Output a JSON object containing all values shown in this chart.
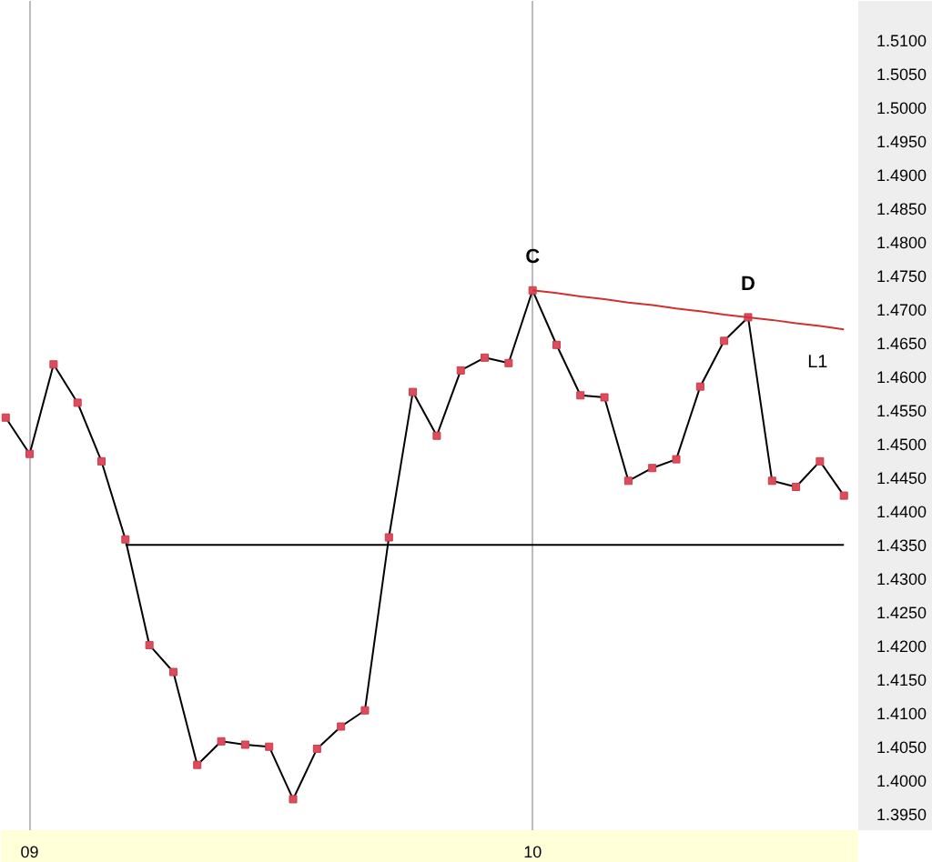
{
  "chart_data": {
    "type": "line",
    "categories": [
      null,
      "09",
      null,
      null,
      null,
      null,
      null,
      null,
      null,
      null,
      null,
      null,
      null,
      null,
      null,
      null,
      null,
      null,
      null,
      null,
      null,
      null,
      "10",
      null,
      null,
      null,
      null,
      null,
      null,
      null,
      null,
      null,
      null,
      null,
      null,
      null
    ],
    "series": [
      {
        "color": "#000000",
        "marker": "square",
        "values": [
          1.4539,
          1.4485,
          1.4618,
          1.4561,
          1.4474,
          1.4358,
          1.4201,
          1.4161,
          1.4023,
          1.4058,
          1.4053,
          1.405,
          1.3972,
          1.4047,
          1.408,
          1.4104,
          1.4361,
          1.4577,
          1.4512,
          1.4609,
          1.4628,
          1.462,
          1.4728,
          1.4647,
          1.4572,
          1.4569,
          1.4445,
          1.4464,
          1.4477,
          1.4585,
          1.4653,
          1.4688,
          1.4445,
          1.4436,
          1.4474,
          1.4423
        ]
      },
      {
        "name": "L1",
        "color": "#d03030",
        "marker": "none",
        "values": [
          null,
          null,
          null,
          null,
          null,
          null,
          null,
          null,
          null,
          null,
          null,
          null,
          null,
          null,
          null,
          null,
          null,
          null,
          null,
          null,
          null,
          null,
          1.4728,
          1.4724,
          1.4719,
          1.4715,
          1.471,
          1.4706,
          1.4701,
          1.4697,
          1.4692,
          1.4688,
          1.4684,
          1.4679,
          1.4675,
          1.467
        ]
      },
      {
        "color": "#000000",
        "marker": "none",
        "values": [
          null,
          null,
          null,
          null,
          null,
          1.435,
          1.435,
          1.435,
          1.435,
          1.435,
          1.435,
          1.435,
          1.435,
          1.435,
          1.435,
          1.435,
          1.435,
          1.435,
          1.435,
          1.435,
          1.435,
          1.435,
          1.435,
          1.435,
          1.435,
          1.435,
          1.435,
          1.435,
          1.435,
          1.435,
          1.435,
          1.435,
          1.435,
          1.435,
          1.435,
          1.435
        ]
      }
    ],
    "annotations": [
      "C",
      "D"
    ],
    "ylim": [
      1.3926,
      1.5158
    ],
    "yticks": [
      {
        "value": 1.395,
        "label": "1.3950"
      },
      {
        "value": 1.4,
        "label": "1.4000"
      },
      {
        "value": 1.405,
        "label": "1.4050"
      },
      {
        "value": 1.41,
        "label": "1.4100"
      },
      {
        "value": 1.415,
        "label": "1.4150"
      },
      {
        "value": 1.42,
        "label": "1.4200"
      },
      {
        "value": 1.425,
        "label": "1.4250"
      },
      {
        "value": 1.43,
        "label": "1.4300"
      },
      {
        "value": 1.435,
        "label": "1.4350"
      },
      {
        "value": 1.44,
        "label": "1.4400"
      },
      {
        "value": 1.445,
        "label": "1.4450"
      },
      {
        "value": 1.45,
        "label": "1.4500"
      },
      {
        "value": 1.455,
        "label": "1.4550"
      },
      {
        "value": 1.46,
        "label": "1.4600"
      },
      {
        "value": 1.465,
        "label": "1.4650"
      },
      {
        "value": 1.47,
        "label": "1.4700"
      },
      {
        "value": 1.475,
        "label": "1.4750"
      },
      {
        "value": 1.48,
        "label": "1.4800"
      },
      {
        "value": 1.485,
        "label": "1.4850"
      },
      {
        "value": 1.49,
        "label": "1.4900"
      },
      {
        "value": 1.495,
        "label": "1.4950"
      },
      {
        "value": 1.5,
        "label": "1.5000"
      },
      {
        "value": 1.505,
        "label": "1.5050"
      },
      {
        "value": 1.51,
        "label": "1.5100"
      }
    ],
    "grid": "x",
    "line_style": "solid"
  }
}
